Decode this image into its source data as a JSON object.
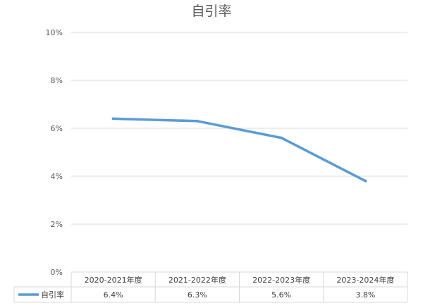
{
  "chart_data": {
    "type": "line",
    "title": "自引率",
    "categories": [
      "2020-2021年度",
      "2021-2022年度",
      "2022-2023年度",
      "2023-2024年度"
    ],
    "series": [
      {
        "name": "自引率",
        "values": [
          6.4,
          6.3,
          5.6,
          3.8
        ],
        "labels": [
          "6.4%",
          "6.3%",
          "5.6%",
          "3.8%"
        ],
        "color": "#5b9bd5"
      }
    ],
    "ylim": [
      0,
      10
    ],
    "yticks": [
      0,
      2,
      4,
      6,
      8,
      10
    ],
    "ytick_labels": [
      "0%",
      "2%",
      "4%",
      "6%",
      "8%",
      "10%"
    ],
    "grid": true,
    "legend": "data-table"
  }
}
